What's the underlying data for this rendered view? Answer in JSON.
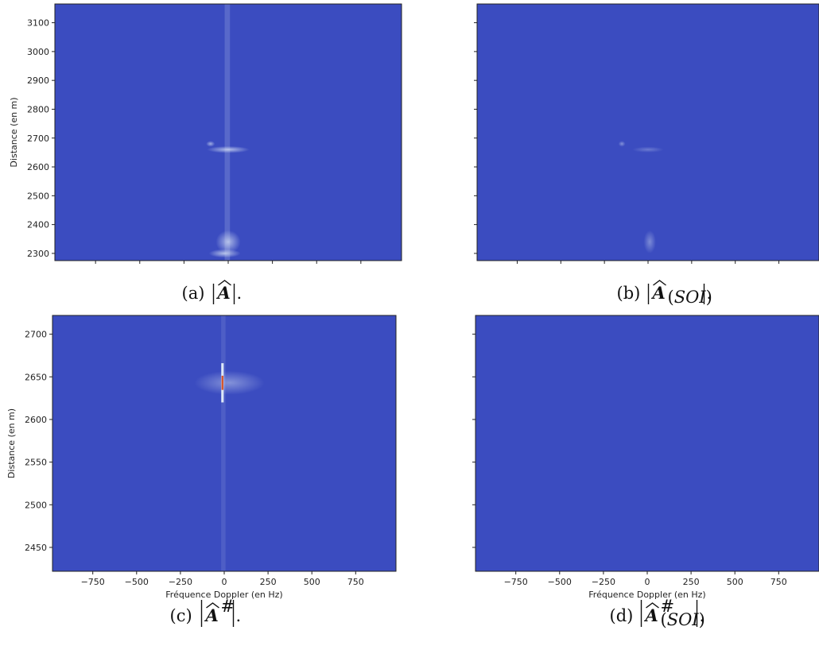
{
  "chart_data": [
    {
      "id": "a",
      "type": "heatmap",
      "caption": {
        "prefix": "(a)",
        "symbol": "A",
        "subscript": "",
        "superscript": ""
      },
      "xlim": [
        -980,
        980
      ],
      "ylim": [
        2275,
        3165
      ],
      "x_ticks": [
        -750,
        -500,
        -250,
        0,
        250,
        500,
        750
      ],
      "x_tick_labels": [],
      "y_ticks": [
        2300,
        2400,
        2500,
        2600,
        2700,
        2800,
        2900,
        3000,
        3100
      ],
      "y_tick_labels": [
        "2300",
        "2400",
        "2500",
        "2600",
        "2700",
        "2800",
        "2900",
        "3000",
        "3100"
      ],
      "xlabel": "",
      "ylabel": "Distance (en m)",
      "features": [
        {
          "kind": "vline",
          "x": -5,
          "width_hz": 30,
          "y": [
            2275,
            3165
          ],
          "intensity": 0.18
        },
        {
          "kind": "blob",
          "x": 0,
          "y": 2660,
          "sx": 120,
          "sy": 12,
          "intensity": 0.3
        },
        {
          "kind": "blob",
          "x": -100,
          "y": 2680,
          "sx": 25,
          "sy": 10,
          "intensity": 0.25
        },
        {
          "kind": "blob",
          "x": 0,
          "y": 2340,
          "sx": 70,
          "sy": 40,
          "intensity": 0.28
        },
        {
          "kind": "blob",
          "x": -20,
          "y": 2300,
          "sx": 90,
          "sy": 15,
          "intensity": 0.3
        }
      ]
    },
    {
      "id": "b",
      "type": "heatmap",
      "caption": {
        "prefix": "(b)",
        "symbol": "A",
        "subscript": "(SOI)",
        "superscript": ""
      },
      "xlim": [
        -980,
        980
      ],
      "ylim": [
        2275,
        3165
      ],
      "x_ticks": [
        -750,
        -500,
        -250,
        0,
        250,
        500,
        750
      ],
      "x_tick_labels": [],
      "y_ticks": [
        2300,
        2400,
        2500,
        2600,
        2700,
        2800,
        2900,
        3000,
        3100
      ],
      "y_tick_labels": [],
      "xlabel": "",
      "ylabel": "",
      "features": [
        {
          "kind": "blob",
          "x": -150,
          "y": 2680,
          "sx": 20,
          "sy": 10,
          "intensity": 0.18
        },
        {
          "kind": "blob",
          "x": 0,
          "y": 2660,
          "sx": 90,
          "sy": 10,
          "intensity": 0.12
        },
        {
          "kind": "blob",
          "x": 10,
          "y": 2340,
          "sx": 35,
          "sy": 40,
          "intensity": 0.16
        }
      ]
    },
    {
      "id": "c",
      "type": "heatmap",
      "caption": {
        "prefix": "(c)",
        "symbol": "A",
        "subscript": "",
        "superscript": "#"
      },
      "xlim": [
        -980,
        980
      ],
      "ylim": [
        2422,
        2722
      ],
      "x_ticks": [
        -750,
        -500,
        -250,
        0,
        250,
        500,
        750
      ],
      "x_tick_labels": [
        "−750",
        "−500",
        "−250",
        "0",
        "250",
        "500",
        "750"
      ],
      "y_ticks": [
        2450,
        2500,
        2550,
        2600,
        2650,
        2700
      ],
      "y_tick_labels": [
        "2450",
        "2500",
        "2550",
        "2600",
        "2650",
        "2700"
      ],
      "xlabel": "Fréquence Doppler (en Hz)",
      "ylabel": "Distance (en m)",
      "features": [
        {
          "kind": "vline",
          "x": -5,
          "width_hz": 25,
          "y": [
            2422,
            2722
          ],
          "intensity": 0.12
        },
        {
          "kind": "blob",
          "x": 30,
          "y": 2643,
          "sx": 200,
          "sy": 14,
          "intensity": 0.18
        },
        {
          "kind": "peak",
          "x": -10,
          "y": 2643,
          "w": 20,
          "h": 46
        }
      ]
    },
    {
      "id": "d",
      "type": "heatmap",
      "caption": {
        "prefix": "(d)",
        "symbol": "A",
        "subscript": "(SOI)",
        "superscript": "#"
      },
      "xlim": [
        -980,
        980
      ],
      "ylim": [
        2422,
        2722
      ],
      "x_ticks": [
        -750,
        -500,
        -250,
        0,
        250,
        500,
        750
      ],
      "x_tick_labels": [
        "−750",
        "−500",
        "−250",
        "0",
        "250",
        "500",
        "750"
      ],
      "y_ticks": [
        2450,
        2500,
        2550,
        2600,
        2650,
        2700
      ],
      "y_tick_labels": [],
      "xlabel": "Fréquence Doppler (en Hz)",
      "ylabel": "",
      "features": []
    }
  ],
  "colors": {
    "background": "#3b4cc0",
    "highlight": "#dde8f7",
    "peak": "#d6572f",
    "axis": "#222222"
  }
}
